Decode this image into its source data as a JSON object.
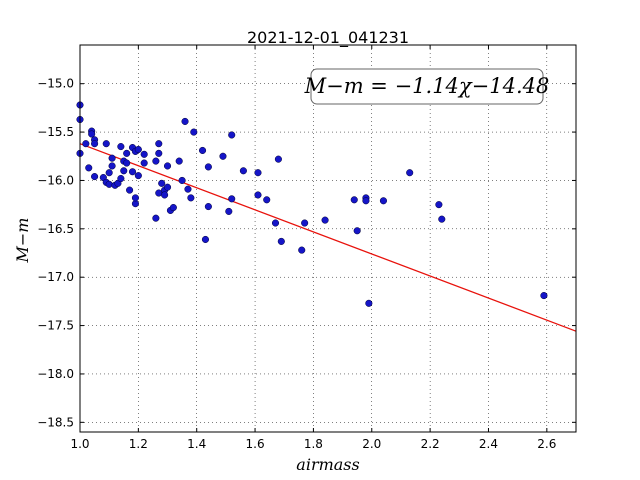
{
  "chart_data": {
    "type": "scatter",
    "title": "2021-12-01_041231",
    "xlabel": "airmass",
    "ylabel": "M−m",
    "xlim": [
      1.0,
      2.7
    ],
    "ylim": [
      -18.6,
      -14.6
    ],
    "x_ticks": [
      1.0,
      1.2,
      1.4,
      1.6,
      1.8,
      2.0,
      2.2,
      2.4,
      2.6
    ],
    "x_tick_labels": [
      "1.0",
      "1.2",
      "1.4",
      "1.6",
      "1.8",
      "2.0",
      "2.2",
      "2.4",
      "2.6"
    ],
    "y_ticks": [
      -15.0,
      -15.5,
      -16.0,
      -16.5,
      -17.0,
      -17.5,
      -18.0,
      -18.5
    ],
    "y_tick_labels": [
      "−15.0",
      "−15.5",
      "−16.0",
      "−16.5",
      "−17.0",
      "−17.5",
      "−18.0",
      "−18.5"
    ],
    "grid": true,
    "annotation": "M−m = −1.14χ−14.48",
    "fit": {
      "slope": -1.14,
      "intercept": -14.48,
      "color": "#e8120c"
    },
    "point_color": "#1515c8",
    "points": [
      {
        "x": 1.0,
        "y": -15.22
      },
      {
        "x": 1.0,
        "y": -15.37
      },
      {
        "x": 1.0,
        "y": -15.72
      },
      {
        "x": 1.02,
        "y": -15.62
      },
      {
        "x": 1.03,
        "y": -15.87
      },
      {
        "x": 1.04,
        "y": -15.49
      },
      {
        "x": 1.04,
        "y": -15.52
      },
      {
        "x": 1.05,
        "y": -15.58
      },
      {
        "x": 1.05,
        "y": -15.62
      },
      {
        "x": 1.05,
        "y": -15.96
      },
      {
        "x": 1.08,
        "y": -15.97
      },
      {
        "x": 1.09,
        "y": -15.62
      },
      {
        "x": 1.09,
        "y": -16.02
      },
      {
        "x": 1.1,
        "y": -15.92
      },
      {
        "x": 1.1,
        "y": -16.04
      },
      {
        "x": 1.11,
        "y": -15.77
      },
      {
        "x": 1.11,
        "y": -15.85
      },
      {
        "x": 1.12,
        "y": -16.05
      },
      {
        "x": 1.13,
        "y": -16.03
      },
      {
        "x": 1.14,
        "y": -15.65
      },
      {
        "x": 1.14,
        "y": -15.98
      },
      {
        "x": 1.15,
        "y": -15.8
      },
      {
        "x": 1.15,
        "y": -15.9
      },
      {
        "x": 1.16,
        "y": -15.82
      },
      {
        "x": 1.16,
        "y": -15.72
      },
      {
        "x": 1.17,
        "y": -16.1
      },
      {
        "x": 1.18,
        "y": -15.91
      },
      {
        "x": 1.18,
        "y": -15.66
      },
      {
        "x": 1.19,
        "y": -16.24
      },
      {
        "x": 1.19,
        "y": -16.18
      },
      {
        "x": 1.19,
        "y": -15.7
      },
      {
        "x": 1.2,
        "y": -15.68
      },
      {
        "x": 1.2,
        "y": -15.95
      },
      {
        "x": 1.22,
        "y": -15.73
      },
      {
        "x": 1.22,
        "y": -15.82
      },
      {
        "x": 1.26,
        "y": -15.8
      },
      {
        "x": 1.26,
        "y": -16.39
      },
      {
        "x": 1.27,
        "y": -15.62
      },
      {
        "x": 1.27,
        "y": -15.72
      },
      {
        "x": 1.27,
        "y": -16.13
      },
      {
        "x": 1.28,
        "y": -16.03
      },
      {
        "x": 1.29,
        "y": -16.1
      },
      {
        "x": 1.29,
        "y": -16.15
      },
      {
        "x": 1.3,
        "y": -15.85
      },
      {
        "x": 1.3,
        "y": -16.07
      },
      {
        "x": 1.31,
        "y": -16.31
      },
      {
        "x": 1.32,
        "y": -16.28
      },
      {
        "x": 1.34,
        "y": -15.8
      },
      {
        "x": 1.35,
        "y": -16.0
      },
      {
        "x": 1.36,
        "y": -15.39
      },
      {
        "x": 1.37,
        "y": -16.09
      },
      {
        "x": 1.38,
        "y": -16.18
      },
      {
        "x": 1.39,
        "y": -15.5
      },
      {
        "x": 1.42,
        "y": -15.69
      },
      {
        "x": 1.43,
        "y": -16.61
      },
      {
        "x": 1.44,
        "y": -16.27
      },
      {
        "x": 1.44,
        "y": -15.86
      },
      {
        "x": 1.49,
        "y": -15.75
      },
      {
        "x": 1.51,
        "y": -16.32
      },
      {
        "x": 1.52,
        "y": -16.19
      },
      {
        "x": 1.52,
        "y": -15.53
      },
      {
        "x": 1.56,
        "y": -15.9
      },
      {
        "x": 1.61,
        "y": -15.92
      },
      {
        "x": 1.61,
        "y": -16.15
      },
      {
        "x": 1.64,
        "y": -16.2
      },
      {
        "x": 1.67,
        "y": -16.44
      },
      {
        "x": 1.68,
        "y": -15.78
      },
      {
        "x": 1.69,
        "y": -16.63
      },
      {
        "x": 1.76,
        "y": -16.72
      },
      {
        "x": 1.77,
        "y": -16.44
      },
      {
        "x": 1.84,
        "y": -16.41
      },
      {
        "x": 1.94,
        "y": -16.2
      },
      {
        "x": 1.95,
        "y": -16.52
      },
      {
        "x": 1.98,
        "y": -16.18
      },
      {
        "x": 1.98,
        "y": -16.21
      },
      {
        "x": 1.99,
        "y": -17.27
      },
      {
        "x": 2.04,
        "y": -16.21
      },
      {
        "x": 2.13,
        "y": -15.92
      },
      {
        "x": 2.23,
        "y": -16.25
      },
      {
        "x": 2.24,
        "y": -16.4
      },
      {
        "x": 2.59,
        "y": -17.19
      }
    ]
  }
}
